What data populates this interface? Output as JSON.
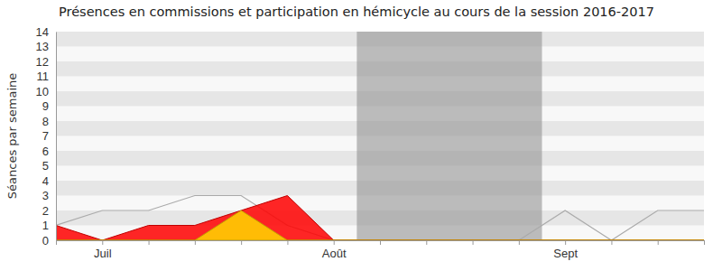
{
  "chart_data": {
    "type": "line",
    "title": "Présences en commissions et participation en hémicycle au cours de la session 2016-2017",
    "y_label": "Séances par semaine",
    "categories": [
      null,
      "Juil",
      null,
      null,
      null,
      null,
      "Août",
      null,
      null,
      null,
      null,
      "Sept",
      null,
      null,
      null
    ],
    "series": [
      {
        "type": "line",
        "color": "#aaaaaa",
        "values": [
          1,
          2,
          2,
          3,
          3,
          1,
          0,
          0,
          0,
          0,
          0,
          2,
          0,
          2,
          2
        ]
      },
      {
        "type": "area",
        "color": "#ff0000",
        "values": [
          1,
          0,
          1,
          1,
          2,
          3,
          0,
          0,
          0,
          0,
          0,
          0,
          0,
          0,
          0
        ]
      },
      {
        "type": "area",
        "color": "#ffd700",
        "values": [
          0,
          0,
          0,
          0,
          2,
          0,
          0,
          0,
          0,
          0,
          0,
          0,
          0,
          0,
          0
        ]
      }
    ],
    "shaded_range": [
      6.5,
      10.5
    ],
    "ylim": [
      0,
      14
    ],
    "yticks": [
      0,
      1,
      2,
      3,
      4,
      5,
      6,
      7,
      8,
      9,
      10,
      11,
      12,
      13,
      14
    ],
    "grid": true
  }
}
